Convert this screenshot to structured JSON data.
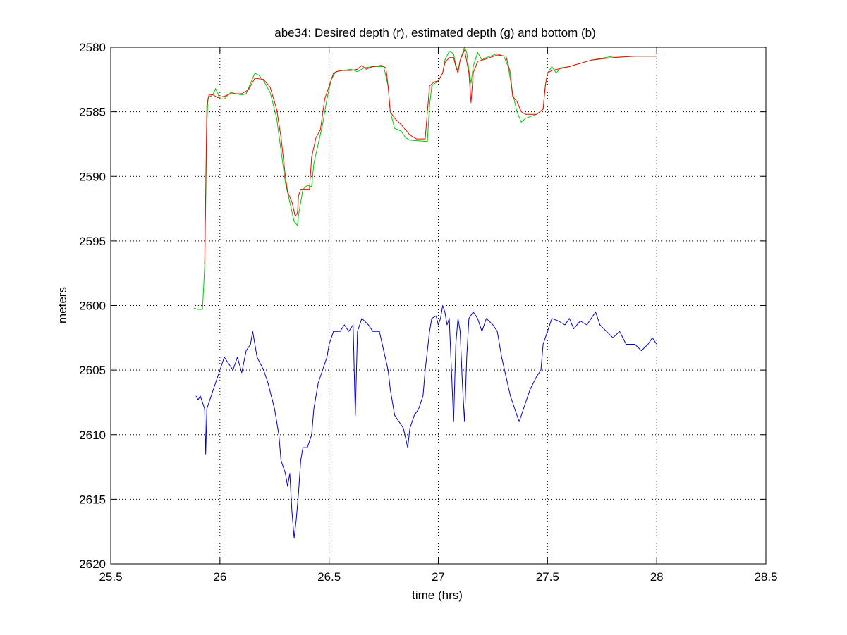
{
  "chart_data": {
    "type": "line",
    "title": "abe34: Desired depth (r), estimated depth (g) and bottom (b)",
    "xlabel": "time (hrs)",
    "ylabel": "meters",
    "xlim": [
      25.5,
      28.5
    ],
    "ylim": [
      2580,
      2620
    ],
    "y_reversed": true,
    "grid": true,
    "x_ticks": [
      25.5,
      26,
      26.5,
      27,
      27.5,
      28,
      28.5
    ],
    "x_tick_labels": [
      "25.5",
      "26",
      "26.5",
      "27",
      "27.5",
      "28",
      "28.5"
    ],
    "y_ticks": [
      2580,
      2585,
      2590,
      2595,
      2600,
      2605,
      2610,
      2615,
      2620
    ],
    "y_tick_labels": [
      "2580",
      "2585",
      "2590",
      "2595",
      "2600",
      "2605",
      "2610",
      "2615",
      "2620"
    ],
    "series": [
      {
        "color": "#ff0000",
        "points": [
          [
            25.93,
            2596.8
          ],
          [
            25.935,
            2591.0
          ],
          [
            25.94,
            2584.5
          ],
          [
            25.95,
            2583.7
          ],
          [
            25.97,
            2583.7
          ],
          [
            25.99,
            2583.9
          ],
          [
            26.02,
            2583.8
          ],
          [
            26.05,
            2583.6
          ],
          [
            26.1,
            2583.6
          ],
          [
            26.13,
            2583.3
          ],
          [
            26.16,
            2582.4
          ],
          [
            26.2,
            2582.5
          ],
          [
            26.23,
            2583.1
          ],
          [
            26.26,
            2584.8
          ],
          [
            26.28,
            2587.0
          ],
          [
            26.3,
            2590.0
          ],
          [
            26.31,
            2591.2
          ],
          [
            26.33,
            2592.0
          ],
          [
            26.345,
            2593.1
          ],
          [
            26.355,
            2592.8
          ],
          [
            26.36,
            2591.5
          ],
          [
            26.37,
            2591.0
          ],
          [
            26.41,
            2591.0
          ],
          [
            26.42,
            2588.5
          ],
          [
            26.44,
            2587.0
          ],
          [
            26.46,
            2586.4
          ],
          [
            26.48,
            2584.0
          ],
          [
            26.5,
            2583.0
          ],
          [
            26.52,
            2582.0
          ],
          [
            26.55,
            2581.8
          ],
          [
            26.6,
            2581.8
          ],
          [
            26.63,
            2581.7
          ],
          [
            26.65,
            2581.4
          ],
          [
            26.67,
            2581.7
          ],
          [
            26.7,
            2581.5
          ],
          [
            26.74,
            2581.4
          ],
          [
            26.76,
            2581.6
          ],
          [
            26.77,
            2583.0
          ],
          [
            26.78,
            2585.0
          ],
          [
            26.8,
            2585.5
          ],
          [
            26.83,
            2586.0
          ],
          [
            26.87,
            2586.8
          ],
          [
            26.9,
            2587.1
          ],
          [
            26.94,
            2587.1
          ],
          [
            26.95,
            2585.0
          ],
          [
            26.96,
            2583.0
          ],
          [
            26.98,
            2582.7
          ],
          [
            27.0,
            2582.6
          ],
          [
            27.02,
            2582.0
          ],
          [
            27.03,
            2581.2
          ],
          [
            27.05,
            2580.8
          ],
          [
            27.07,
            2580.8
          ],
          [
            27.08,
            2581.5
          ],
          [
            27.09,
            2582.0
          ],
          [
            27.1,
            2581.0
          ],
          [
            27.12,
            2580.2
          ],
          [
            27.14,
            2582.0
          ],
          [
            27.15,
            2584.3
          ],
          [
            27.16,
            2582.0
          ],
          [
            27.18,
            2581.1
          ],
          [
            27.22,
            2580.9
          ],
          [
            27.27,
            2580.6
          ],
          [
            27.31,
            2580.7
          ],
          [
            27.33,
            2582.0
          ],
          [
            27.34,
            2583.8
          ],
          [
            27.36,
            2584.2
          ],
          [
            27.38,
            2585.0
          ],
          [
            27.4,
            2585.2
          ],
          [
            27.45,
            2585.2
          ],
          [
            27.48,
            2584.8
          ],
          [
            27.49,
            2583.0
          ],
          [
            27.5,
            2582.0
          ],
          [
            27.52,
            2581.8
          ],
          [
            27.6,
            2581.5
          ],
          [
            27.7,
            2581.0
          ],
          [
            27.8,
            2580.8
          ],
          [
            27.9,
            2580.7
          ],
          [
            28.0,
            2580.7
          ]
        ]
      },
      {
        "color": "#00cc00",
        "points": [
          [
            25.88,
            2600.2
          ],
          [
            25.9,
            2600.3
          ],
          [
            25.92,
            2600.3
          ],
          [
            25.93,
            2597.0
          ],
          [
            25.935,
            2592.0
          ],
          [
            25.94,
            2586.0
          ],
          [
            25.945,
            2584.0
          ],
          [
            25.95,
            2583.8
          ],
          [
            25.96,
            2583.8
          ],
          [
            25.97,
            2583.6
          ],
          [
            25.98,
            2583.2
          ],
          [
            25.99,
            2583.6
          ],
          [
            26.0,
            2584.0
          ],
          [
            26.02,
            2584.0
          ],
          [
            26.05,
            2583.5
          ],
          [
            26.1,
            2583.7
          ],
          [
            26.12,
            2583.6
          ],
          [
            26.14,
            2582.8
          ],
          [
            26.16,
            2582.0
          ],
          [
            26.18,
            2582.2
          ],
          [
            26.2,
            2582.6
          ],
          [
            26.23,
            2583.5
          ],
          [
            26.26,
            2585.5
          ],
          [
            26.28,
            2588.0
          ],
          [
            26.3,
            2590.5
          ],
          [
            26.32,
            2592.0
          ],
          [
            26.34,
            2593.5
          ],
          [
            26.355,
            2593.8
          ],
          [
            26.36,
            2593.0
          ],
          [
            26.38,
            2591.0
          ],
          [
            26.4,
            2590.7
          ],
          [
            26.42,
            2590.8
          ],
          [
            26.43,
            2589.0
          ],
          [
            26.45,
            2587.5
          ],
          [
            26.47,
            2586.0
          ],
          [
            26.49,
            2584.0
          ],
          [
            26.51,
            2582.5
          ],
          [
            26.53,
            2581.9
          ],
          [
            26.6,
            2581.7
          ],
          [
            26.63,
            2581.9
          ],
          [
            26.66,
            2581.6
          ],
          [
            26.7,
            2581.5
          ],
          [
            26.75,
            2581.5
          ],
          [
            26.77,
            2583.0
          ],
          [
            26.78,
            2585.0
          ],
          [
            26.8,
            2586.3
          ],
          [
            26.83,
            2586.5
          ],
          [
            26.85,
            2587.0
          ],
          [
            26.87,
            2587.2
          ],
          [
            26.95,
            2587.3
          ],
          [
            26.96,
            2584.5
          ],
          [
            26.97,
            2583.0
          ],
          [
            27.0,
            2582.6
          ],
          [
            27.02,
            2582.0
          ],
          [
            27.03,
            2581.0
          ],
          [
            27.05,
            2580.3
          ],
          [
            27.07,
            2580.5
          ],
          [
            27.08,
            2581.4
          ],
          [
            27.09,
            2581.8
          ],
          [
            27.1,
            2581.0
          ],
          [
            27.12,
            2580.0
          ],
          [
            27.13,
            2580.4
          ],
          [
            27.14,
            2581.8
          ],
          [
            27.15,
            2582.8
          ],
          [
            27.16,
            2581.5
          ],
          [
            27.18,
            2580.4
          ],
          [
            27.2,
            2581.0
          ],
          [
            27.22,
            2580.8
          ],
          [
            27.27,
            2580.5
          ],
          [
            27.3,
            2580.7
          ],
          [
            27.32,
            2581.5
          ],
          [
            27.34,
            2583.5
          ],
          [
            27.36,
            2585.0
          ],
          [
            27.38,
            2585.8
          ],
          [
            27.4,
            2585.5
          ],
          [
            27.45,
            2585.2
          ],
          [
            27.48,
            2584.8
          ],
          [
            27.49,
            2583.0
          ],
          [
            27.5,
            2582.0
          ],
          [
            27.52,
            2581.5
          ],
          [
            27.54,
            2582.0
          ],
          [
            27.56,
            2581.6
          ],
          [
            27.6,
            2581.5
          ],
          [
            27.7,
            2581.0
          ],
          [
            27.8,
            2580.7
          ],
          [
            27.9,
            2580.7
          ],
          [
            28.0,
            2580.7
          ]
        ]
      },
      {
        "color": "#0000cc",
        "points": [
          [
            25.89,
            2607.0
          ],
          [
            25.9,
            2607.3
          ],
          [
            25.91,
            2607.0
          ],
          [
            25.92,
            2607.5
          ],
          [
            25.93,
            2608.0
          ],
          [
            25.935,
            2611.5
          ],
          [
            25.94,
            2608.0
          ],
          [
            25.96,
            2607.0
          ],
          [
            25.98,
            2606.0
          ],
          [
            26.0,
            2605.0
          ],
          [
            26.02,
            2604.0
          ],
          [
            26.04,
            2604.5
          ],
          [
            26.06,
            2605.0
          ],
          [
            26.08,
            2604.0
          ],
          [
            26.1,
            2605.2
          ],
          [
            26.12,
            2603.5
          ],
          [
            26.14,
            2603.0
          ],
          [
            26.15,
            2602.0
          ],
          [
            26.17,
            2604.0
          ],
          [
            26.2,
            2605.0
          ],
          [
            26.22,
            2606.0
          ],
          [
            26.25,
            2608.0
          ],
          [
            26.27,
            2610.0
          ],
          [
            26.28,
            2612.0
          ],
          [
            26.3,
            2613.0
          ],
          [
            26.31,
            2614.0
          ],
          [
            26.32,
            2613.0
          ],
          [
            26.33,
            2616.0
          ],
          [
            26.34,
            2618.0
          ],
          [
            26.35,
            2616.5
          ],
          [
            26.36,
            2614.5
          ],
          [
            26.37,
            2612.0
          ],
          [
            26.38,
            2611.0
          ],
          [
            26.4,
            2611.0
          ],
          [
            26.42,
            2610.0
          ],
          [
            26.43,
            2608.0
          ],
          [
            26.45,
            2606.0
          ],
          [
            26.47,
            2605.0
          ],
          [
            26.49,
            2604.0
          ],
          [
            26.5,
            2603.0
          ],
          [
            26.52,
            2602.0
          ],
          [
            26.55,
            2602.0
          ],
          [
            26.57,
            2601.5
          ],
          [
            26.59,
            2602.0
          ],
          [
            26.61,
            2601.5
          ],
          [
            26.62,
            2608.5
          ],
          [
            26.63,
            2602.0
          ],
          [
            26.65,
            2601.0
          ],
          [
            26.68,
            2601.5
          ],
          [
            26.7,
            2602.0
          ],
          [
            26.73,
            2602.0
          ],
          [
            26.75,
            2603.5
          ],
          [
            26.77,
            2605.0
          ],
          [
            26.78,
            2606.5
          ],
          [
            26.8,
            2608.5
          ],
          [
            26.82,
            2609.0
          ],
          [
            26.84,
            2609.5
          ],
          [
            26.86,
            2611.0
          ],
          [
            26.87,
            2609.5
          ],
          [
            26.89,
            2608.5
          ],
          [
            26.91,
            2608.0
          ],
          [
            26.93,
            2607.0
          ],
          [
            26.94,
            2605.0
          ],
          [
            26.95,
            2603.5
          ],
          [
            26.96,
            2602.0
          ],
          [
            26.97,
            2601.0
          ],
          [
            26.99,
            2600.8
          ],
          [
            27.0,
            2601.5
          ],
          [
            27.01,
            2601.0
          ],
          [
            27.02,
            2600.0
          ],
          [
            27.03,
            2600.5
          ],
          [
            27.04,
            2601.5
          ],
          [
            27.05,
            2601.0
          ],
          [
            27.06,
            2605.0
          ],
          [
            27.07,
            2609.0
          ],
          [
            27.08,
            2603.0
          ],
          [
            27.09,
            2601.0
          ],
          [
            27.1,
            2602.0
          ],
          [
            27.11,
            2606.0
          ],
          [
            27.12,
            2609.0
          ],
          [
            27.13,
            2604.0
          ],
          [
            27.14,
            2601.0
          ],
          [
            27.16,
            2600.5
          ],
          [
            27.18,
            2601.0
          ],
          [
            27.2,
            2602.0
          ],
          [
            27.22,
            2601.0
          ],
          [
            27.25,
            2601.5
          ],
          [
            27.27,
            2602.0
          ],
          [
            27.29,
            2604.0
          ],
          [
            27.31,
            2605.5
          ],
          [
            27.33,
            2607.0
          ],
          [
            27.35,
            2608.0
          ],
          [
            27.37,
            2609.0
          ],
          [
            27.38,
            2608.5
          ],
          [
            27.4,
            2607.5
          ],
          [
            27.42,
            2606.5
          ],
          [
            27.45,
            2605.5
          ],
          [
            27.47,
            2605.0
          ],
          [
            27.48,
            2603.0
          ],
          [
            27.5,
            2602.0
          ],
          [
            27.52,
            2601.0
          ],
          [
            27.55,
            2601.2
          ],
          [
            27.58,
            2601.5
          ],
          [
            27.6,
            2601.0
          ],
          [
            27.62,
            2601.8
          ],
          [
            27.65,
            2601.2
          ],
          [
            27.68,
            2601.5
          ],
          [
            27.7,
            2601.0
          ],
          [
            27.72,
            2600.5
          ],
          [
            27.74,
            2601.5
          ],
          [
            27.77,
            2602.0
          ],
          [
            27.8,
            2602.5
          ],
          [
            27.83,
            2602.0
          ],
          [
            27.86,
            2603.0
          ],
          [
            27.9,
            2603.0
          ],
          [
            27.93,
            2603.5
          ],
          [
            27.96,
            2603.0
          ],
          [
            27.98,
            2602.5
          ],
          [
            28.0,
            2603.0
          ]
        ]
      }
    ]
  }
}
